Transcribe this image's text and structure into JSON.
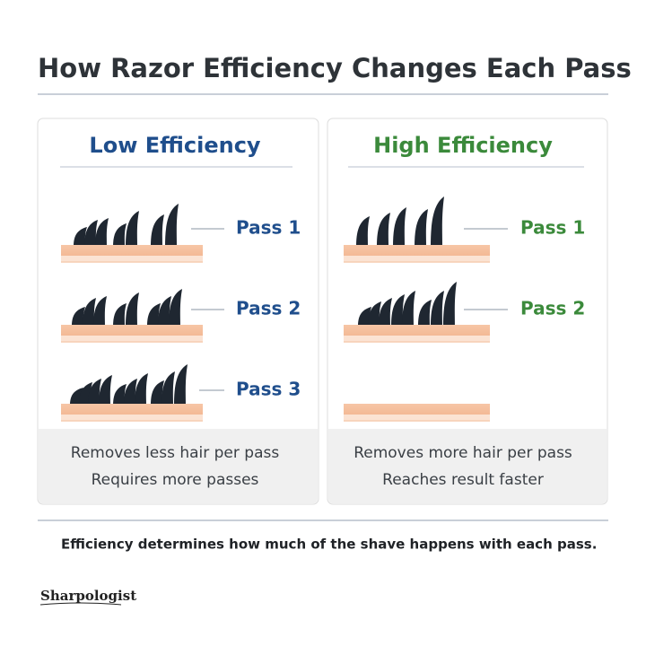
{
  "title": "How Razor Efficiency Changes Each Pass",
  "panels": [
    {
      "heading": "Low Efficiency",
      "passes": [
        "Pass 1",
        "Pass 2",
        "Pass 3"
      ],
      "notes": [
        "Removes less hair per pass",
        "Requires more passes"
      ]
    },
    {
      "heading": "High Efficiency",
      "passes": [
        "Pass 1",
        "Pass 2"
      ],
      "notes": [
        "Removes more hair per pass",
        "Reaches result faster"
      ]
    }
  ],
  "footer": "Efficiency determines how much of the shave happens with each pass.",
  "logo": "Sharpologist"
}
